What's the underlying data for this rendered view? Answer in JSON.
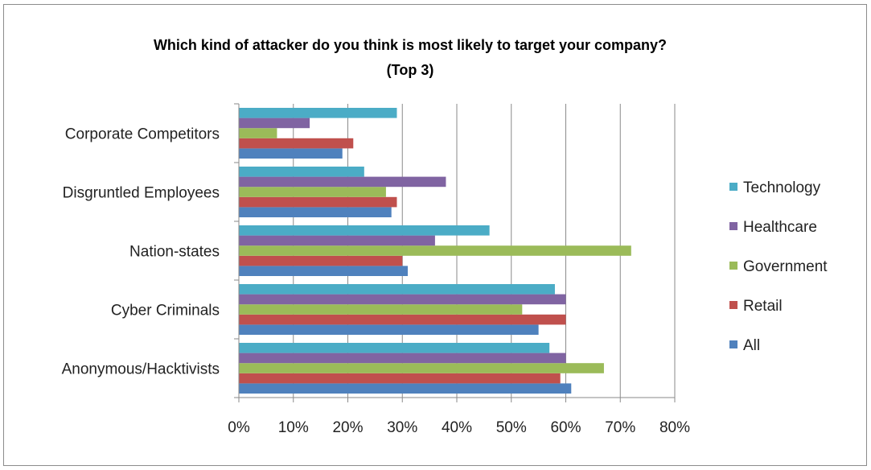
{
  "chart_data": {
    "type": "bar",
    "orientation": "horizontal",
    "title": "Which kind of attacker do you think is most likely to target your company?",
    "subtitle": "(Top 3)",
    "categories": [
      "Anonymous/Hacktivists",
      "Cyber Criminals",
      "Nation-states",
      "Disgruntled Employees",
      "Corporate Competitors"
    ],
    "series": [
      {
        "name": "All",
        "color": "#4f81bd",
        "values": [
          61,
          55,
          31,
          28,
          19
        ]
      },
      {
        "name": "Retail",
        "color": "#c0504d",
        "values": [
          59,
          60,
          30,
          29,
          21
        ]
      },
      {
        "name": "Government",
        "color": "#9bbb59",
        "values": [
          67,
          52,
          72,
          27,
          7
        ]
      },
      {
        "name": "Healthcare",
        "color": "#8064a2",
        "values": [
          60,
          60,
          36,
          38,
          13
        ]
      },
      {
        "name": "Technology",
        "color": "#4bacc6",
        "values": [
          57,
          58,
          46,
          23,
          29
        ]
      }
    ],
    "xlim": [
      0,
      80
    ],
    "xticks": [
      "0%",
      "10%",
      "20%",
      "30%",
      "40%",
      "50%",
      "60%",
      "70%",
      "80%"
    ],
    "grid": "vertical",
    "legend_position": "right",
    "legend_order": [
      "Technology",
      "Healthcare",
      "Government",
      "Retail",
      "All"
    ]
  }
}
